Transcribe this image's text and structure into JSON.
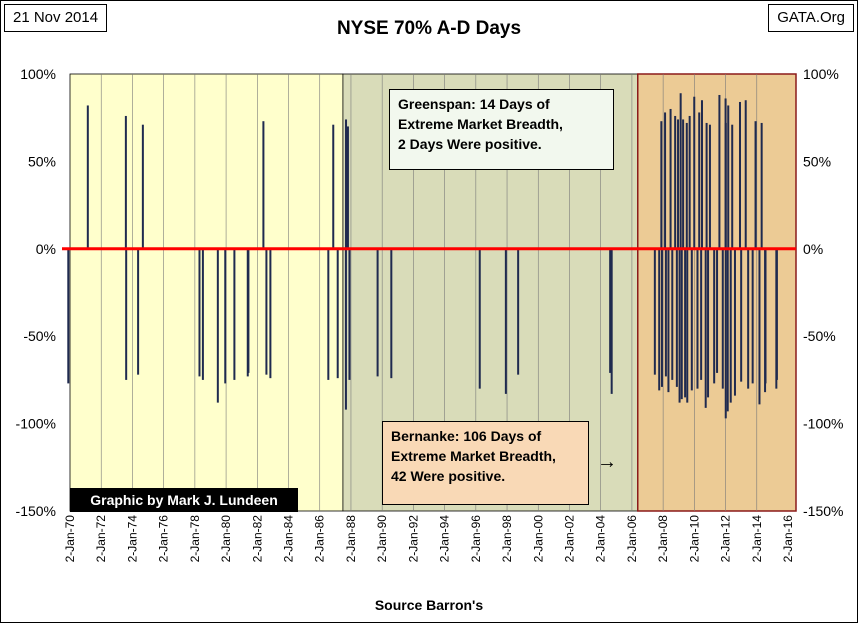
{
  "header": {
    "date_stamp": "21 Nov 2014",
    "site_stamp": "GATA.Org"
  },
  "annotations": {
    "greenspan_lines": [
      "Greenspan: 14 Days of",
      "Extreme Market Breadth,",
      "2 Days Were positive."
    ],
    "bernanke_lines": [
      "Bernanke:  106 Days of",
      "Extreme Market Breadth,",
      "42 Were positive."
    ],
    "arrow": "→",
    "credit": "Graphic by Mark J. Lundeen"
  },
  "colors": {
    "pre_greenspan_bg": "#ffffcc",
    "greenspan_bg": "#d9dcb9",
    "bernanke_bg": "#eccb95",
    "bar": "#1f2a4f",
    "zero_line": "#ff0000",
    "bernanke_border": "#8b1a1a"
  },
  "chart_data": {
    "type": "bar",
    "title": "NYSE 70% A-D Days",
    "xlabel": "Source Barron's",
    "ylabel": "",
    "ylim": [
      -150,
      100
    ],
    "yticks": [
      100,
      50,
      0,
      -50,
      -100,
      -150
    ],
    "ytick_labels": [
      "100%",
      "50%",
      "0%",
      "-50%",
      "-100%",
      "-150%"
    ],
    "xlim": [
      "1970-01-02",
      "2016-01-02"
    ],
    "xtick_labels": [
      "2-Jan-70",
      "2-Jan-72",
      "2-Jan-74",
      "2-Jan-76",
      "2-Jan-78",
      "2-Jan-80",
      "2-Jan-82",
      "2-Jan-84",
      "2-Jan-86",
      "2-Jan-88",
      "2-Jan-90",
      "2-Jan-92",
      "2-Jan-94",
      "2-Jan-96",
      "2-Jan-98",
      "2-Jan-00",
      "2-Jan-02",
      "2-Jan-04",
      "2-Jan-06",
      "2-Jan-08",
      "2-Jan-10",
      "2-Jan-12",
      "2-Jan-14",
      "2-Jan-16"
    ],
    "regions": [
      {
        "name": "pre-greenspan",
        "start": "1970-01-02",
        "end": "1987-08-11"
      },
      {
        "name": "greenspan",
        "start": "1987-08-11",
        "end": "2006-02-01"
      },
      {
        "name": "bernanke",
        "start": "2006-02-01",
        "end": "2016-01-02"
      }
    ],
    "zero_line": 0,
    "points": [
      {
        "date": "1970-05-26",
        "value": -77
      },
      {
        "date": "1971-08-16",
        "value": 82
      },
      {
        "date": "1974-01-03",
        "value": 76
      },
      {
        "date": "1974-01-10",
        "value": -75
      },
      {
        "date": "1974-10-10",
        "value": -72
      },
      {
        "date": "1975-01-27",
        "value": 71
      },
      {
        "date": "1978-08-15",
        "value": -73
      },
      {
        "date": "1978-11-01",
        "value": -75
      },
      {
        "date": "1979-10-09",
        "value": -88
      },
      {
        "date": "1980-03-27",
        "value": -77
      },
      {
        "date": "1980-10-22",
        "value": -75
      },
      {
        "date": "1981-08-24",
        "value": -73
      },
      {
        "date": "1981-09-08",
        "value": -71
      },
      {
        "date": "1982-08-17",
        "value": 73
      },
      {
        "date": "1982-10-25",
        "value": -72
      },
      {
        "date": "1983-01-24",
        "value": -74
      },
      {
        "date": "1986-09-11",
        "value": -75
      },
      {
        "date": "1987-01-02",
        "value": 71
      },
      {
        "date": "1987-04-14",
        "value": -74
      },
      {
        "date": "1987-10-19",
        "value": -92
      },
      {
        "date": "1987-10-21",
        "value": 74
      },
      {
        "date": "1987-12-04",
        "value": 70
      },
      {
        "date": "1988-01-08",
        "value": -75
      },
      {
        "date": "1989-10-13",
        "value": -73
      },
      {
        "date": "1990-08-23",
        "value": -74
      },
      {
        "date": "1996-03-08",
        "value": -80
      },
      {
        "date": "1997-10-27",
        "value": -83
      },
      {
        "date": "1998-08-04",
        "value": -72
      },
      {
        "date": "2004-05-10",
        "value": -71
      },
      {
        "date": "2004-06-14",
        "value": -83
      },
      {
        "date": "2007-02-27",
        "value": -72
      },
      {
        "date": "2007-06-07",
        "value": -81
      },
      {
        "date": "2007-07-26",
        "value": 73
      },
      {
        "date": "2007-08-09",
        "value": -79
      },
      {
        "date": "2007-10-19",
        "value": 78
      },
      {
        "date": "2007-11-07",
        "value": -73
      },
      {
        "date": "2008-01-04",
        "value": -82
      },
      {
        "date": "2008-02-22",
        "value": 80
      },
      {
        "date": "2008-04-01",
        "value": -75
      },
      {
        "date": "2008-06-06",
        "value": 76
      },
      {
        "date": "2008-07-15",
        "value": -79
      },
      {
        "date": "2008-08-11",
        "value": 74
      },
      {
        "date": "2008-09-15",
        "value": -88
      },
      {
        "date": "2008-10-10",
        "value": 89
      },
      {
        "date": "2008-11-04",
        "value": -86
      },
      {
        "date": "2008-12-05",
        "value": 74
      },
      {
        "date": "2009-01-20",
        "value": -85
      },
      {
        "date": "2009-02-27",
        "value": 72
      },
      {
        "date": "2009-03-10",
        "value": -88
      },
      {
        "date": "2009-05-04",
        "value": 76
      },
      {
        "date": "2009-06-22",
        "value": -81
      },
      {
        "date": "2009-08-17",
        "value": 87
      },
      {
        "date": "2009-10-30",
        "value": -80
      },
      {
        "date": "2009-12-09",
        "value": 78
      },
      {
        "date": "2010-01-22",
        "value": -75
      },
      {
        "date": "2010-02-10",
        "value": 85
      },
      {
        "date": "2010-05-06",
        "value": -91
      },
      {
        "date": "2010-05-27",
        "value": 72
      },
      {
        "date": "2010-06-29",
        "value": -85
      },
      {
        "date": "2010-08-11",
        "value": 71
      },
      {
        "date": "2010-11-16",
        "value": -77
      },
      {
        "date": "2011-01-21",
        "value": -71
      },
      {
        "date": "2011-03-16",
        "value": 88
      },
      {
        "date": "2011-06-01",
        "value": -80
      },
      {
        "date": "2011-08-04",
        "value": 86
      },
      {
        "date": "2011-08-08",
        "value": -97
      },
      {
        "date": "2011-08-09",
        "value": 72
      },
      {
        "date": "2011-09-22",
        "value": -93
      },
      {
        "date": "2011-10-04",
        "value": 82
      },
      {
        "date": "2011-11-30",
        "value": -88
      },
      {
        "date": "2012-01-03",
        "value": 71
      },
      {
        "date": "2012-03-06",
        "value": -84
      },
      {
        "date": "2012-06-29",
        "value": 84
      },
      {
        "date": "2012-07-26",
        "value": -76
      },
      {
        "date": "2012-11-07",
        "value": 85
      },
      {
        "date": "2013-01-02",
        "value": -80
      },
      {
        "date": "2013-04-15",
        "value": -77
      },
      {
        "date": "2013-06-20",
        "value": 73
      },
      {
        "date": "2013-09-18",
        "value": -89
      },
      {
        "date": "2013-11-07",
        "value": 72
      },
      {
        "date": "2014-01-24",
        "value": -82
      },
      {
        "date": "2014-02-03",
        "value": -77
      },
      {
        "date": "2014-10-09",
        "value": -80
      },
      {
        "date": "2014-10-22",
        "value": -75
      }
    ]
  }
}
